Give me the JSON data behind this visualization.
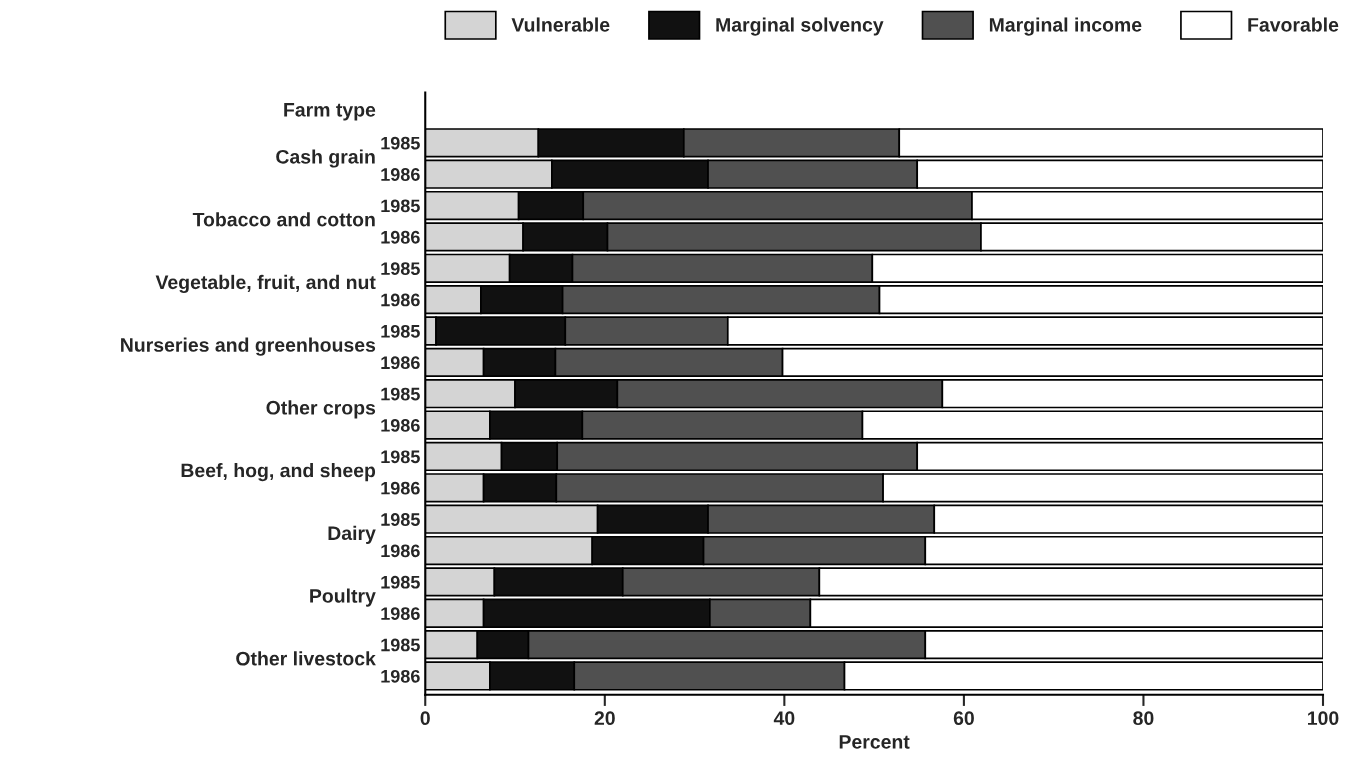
{
  "chart_data": {
    "type": "bar",
    "orientation": "horizontal",
    "stacked": true,
    "xlabel": "Percent",
    "categories": [
      "1985",
      "1986",
      "1985",
      "1986",
      "1985",
      "1986",
      "1985",
      "1986",
      "1985",
      "1986",
      "1985",
      "1986",
      "1985",
      "1986",
      "1985",
      "1986",
      "1985",
      "1986"
    ],
    "annotations": [
      "Farm type",
      "Cash grain",
      "Tobacco and cotton",
      "Vegetable, fruit, and nut",
      "Nurseries and greenhouses",
      "Other crops",
      "Beef, hog, and sheep",
      "Dairy",
      "Poultry",
      "Other livestock"
    ],
    "series": [
      {
        "name": "Vulnerable",
        "color": "#d4d4d4",
        "values": [
          12.6,
          14.1,
          10.4,
          10.9,
          9.4,
          6.2,
          1.2,
          6.5,
          10.0,
          7.2,
          8.5,
          6.5,
          19.2,
          18.6,
          7.7,
          6.5,
          5.8,
          7.2
        ]
      },
      {
        "name": "Marginal solvency",
        "color": "#111111",
        "values": [
          16.2,
          17.4,
          7.2,
          9.4,
          7.0,
          9.1,
          14.4,
          8.0,
          11.4,
          10.3,
          6.2,
          8.1,
          12.3,
          12.4,
          14.3,
          25.2,
          5.7,
          9.4
        ]
      },
      {
        "name": "Marginal income",
        "color": "#505050",
        "values": [
          24.0,
          23.3,
          43.3,
          41.6,
          33.4,
          35.3,
          18.1,
          25.3,
          36.2,
          31.2,
          40.1,
          36.4,
          25.2,
          24.7,
          21.9,
          11.2,
          44.2,
          30.1
        ]
      },
      {
        "name": "Favorable",
        "color": "#ffffff",
        "values": [
          47.2,
          45.2,
          39.1,
          38.1,
          50.2,
          49.4,
          66.3,
          60.2,
          42.4,
          51.3,
          45.2,
          49.0,
          43.3,
          44.3,
          56.1,
          57.1,
          44.3,
          53.3
        ]
      }
    ],
    "xlim": [
      0,
      100
    ],
    "xticks": [
      0,
      20,
      40,
      60,
      80,
      100
    ],
    "grid": false,
    "legend": "top"
  }
}
